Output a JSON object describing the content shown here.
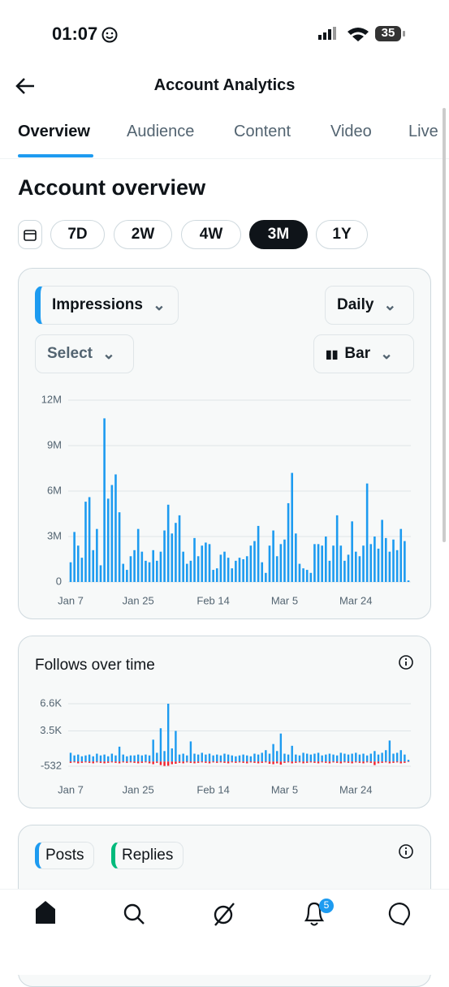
{
  "status_bar": {
    "time": "01:07",
    "battery": "35"
  },
  "header": {
    "title": "Account Analytics"
  },
  "tabs": [
    "Overview",
    "Audience",
    "Content",
    "Video",
    "Live"
  ],
  "section_title": "Account overview",
  "ranges": [
    "7D",
    "2W",
    "4W",
    "3M",
    "1Y"
  ],
  "controls": {
    "metric": "Impressions",
    "interval": "Daily",
    "compare": "Select",
    "chart_type": "Bar"
  },
  "chart_data": [
    {
      "type": "bar",
      "color": "#1d9bf0",
      "categories": [
        "Jan 7",
        null,
        null,
        null,
        null,
        null,
        null,
        null,
        null,
        null,
        null,
        null,
        null,
        null,
        null,
        null,
        null,
        null,
        "Jan 25",
        null,
        null,
        null,
        null,
        null,
        null,
        null,
        null,
        null,
        null,
        null,
        null,
        null,
        null,
        null,
        null,
        null,
        null,
        null,
        "Feb 14",
        null,
        null,
        null,
        null,
        null,
        null,
        null,
        null,
        null,
        null,
        null,
        null,
        null,
        null,
        null,
        null,
        null,
        null,
        "Mar 5",
        null,
        null,
        null,
        null,
        null,
        null,
        null,
        null,
        null,
        null,
        null,
        null,
        null,
        null,
        null,
        null,
        null,
        null,
        "Mar 24",
        null,
        null,
        null,
        null,
        null,
        null,
        null,
        null,
        null,
        null,
        null,
        null,
        null,
        null
      ],
      "values": [
        1.3,
        3.3,
        2.4,
        1.6,
        5.3,
        5.6,
        2.1,
        3.5,
        1.1,
        10.8,
        5.5,
        6.4,
        7.1,
        4.6,
        1.2,
        0.8,
        1.7,
        2.1,
        3.5,
        2.0,
        1.4,
        1.3,
        2.1,
        1.4,
        2.0,
        3.4,
        5.1,
        3.2,
        3.9,
        4.4,
        2.0,
        1.2,
        1.4,
        2.9,
        1.7,
        2.4,
        2.6,
        2.5,
        0.8,
        0.9,
        1.8,
        2.0,
        1.6,
        0.9,
        1.4,
        1.6,
        1.5,
        1.7,
        2.4,
        2.7,
        3.7,
        1.3,
        0.6,
        2.4,
        3.4,
        1.7,
        2.5,
        2.8,
        5.2,
        7.2,
        3.2,
        1.2,
        0.9,
        0.8,
        0.6,
        2.5,
        2.5,
        2.4,
        3.0,
        1.4,
        2.4,
        4.4,
        2.4,
        1.4,
        1.8,
        4.0,
        2.0,
        1.7,
        2.4,
        6.5,
        2.5,
        3.0,
        2.2,
        4.1,
        2.9,
        2.0,
        2.8,
        2.1,
        3.5,
        2.7,
        0.1
      ],
      "ylim": [
        0,
        12
      ],
      "yticks": [
        0,
        {
          "value": 3,
          "label": "3M"
        },
        {
          "value": 6,
          "label": "6M"
        },
        {
          "value": 9,
          "label": "9M"
        },
        {
          "value": 12,
          "label": "12M"
        }
      ],
      "grid": true
    },
    {
      "type": "bar",
      "title": "Follows over time",
      "categories": [
        "Jan 7",
        null,
        null,
        null,
        null,
        null,
        null,
        null,
        null,
        null,
        null,
        null,
        null,
        null,
        null,
        null,
        null,
        null,
        "Jan 25",
        null,
        null,
        null,
        null,
        null,
        null,
        null,
        null,
        null,
        null,
        null,
        null,
        null,
        null,
        null,
        null,
        null,
        null,
        null,
        "Feb 14",
        null,
        null,
        null,
        null,
        null,
        null,
        null,
        null,
        null,
        null,
        null,
        null,
        null,
        null,
        null,
        null,
        null,
        null,
        "Mar 5",
        null,
        null,
        null,
        null,
        null,
        null,
        null,
        null,
        null,
        null,
        null,
        null,
        null,
        null,
        null,
        null,
        null,
        null,
        "Mar 24",
        null,
        null,
        null,
        null,
        null,
        null,
        null,
        null,
        null,
        null,
        null,
        null,
        null,
        null
      ],
      "series": [
        {
          "color": "#1d9bf0",
          "values": [
            1000,
            700,
            800,
            600,
            700,
            800,
            600,
            900,
            700,
            800,
            600,
            900,
            700,
            1700,
            800,
            600,
            700,
            700,
            800,
            700,
            800,
            700,
            2500,
            1000,
            3800,
            1200,
            6600,
            1500,
            3500,
            800,
            900,
            700,
            2300,
            900,
            800,
            1000,
            800,
            900,
            700,
            800,
            700,
            900,
            800,
            700,
            600,
            700,
            800,
            700,
            600,
            900,
            800,
            1000,
            1300,
            900,
            2000,
            1200,
            3200,
            900,
            800,
            1800,
            800,
            700,
            1000,
            900,
            800,
            900,
            1000,
            700,
            800,
            900,
            800,
            700,
            1000,
            900,
            800,
            900,
            1000,
            800,
            900,
            700,
            900,
            1200,
            800,
            1000,
            1300,
            2400,
            900,
            1000,
            1300,
            800,
            200
          ]
        },
        {
          "color": "#f4212e",
          "values": [
            -150,
            -100,
            -200,
            -150,
            -100,
            -150,
            -200,
            -100,
            -150,
            -200,
            -150,
            -100,
            -150,
            -200,
            -100,
            -150,
            -100,
            -150,
            -200,
            -150,
            -100,
            -200,
            -300,
            -150,
            -400,
            -500,
            -480,
            -300,
            -250,
            -150,
            -200,
            -100,
            -150,
            -200,
            -150,
            -100,
            -150,
            -200,
            -100,
            -150,
            -100,
            -150,
            -200,
            -100,
            -150,
            -100,
            -150,
            -200,
            -100,
            -150,
            -200,
            -150,
            -100,
            -250,
            -300,
            -200,
            -350,
            -150,
            -100,
            -200,
            -150,
            -100,
            -200,
            -150,
            -100,
            -150,
            -200,
            -100,
            -150,
            -200,
            -100,
            -150,
            -200,
            -100,
            -150,
            -200,
            -100,
            -150,
            -200,
            -100,
            -150,
            -400,
            -200,
            -150,
            -100,
            -200,
            -150,
            -100,
            -200,
            -150,
            -50
          ]
        }
      ],
      "ylim": [
        -532,
        6600
      ],
      "yticks": [
        -532,
        {
          "value": 3500,
          "label": "3.5K"
        },
        {
          "value": 6600,
          "label": "6.6K"
        }
      ],
      "grid": true
    }
  ],
  "posts_card": {
    "legend": [
      "Posts",
      "Replies"
    ]
  },
  "nav": {
    "notifications": "5"
  }
}
